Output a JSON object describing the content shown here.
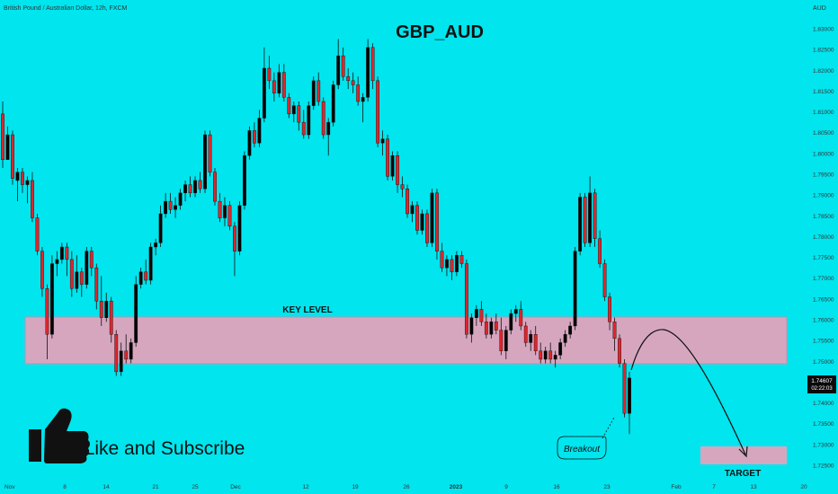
{
  "header": {
    "symbol_line": "British Pound / Australian Dollar, 12h, FXCM",
    "currency": "AUD"
  },
  "title": "GBP_AUD",
  "annotations": {
    "key_level": "KEY LEVEL",
    "breakout": "Breakout",
    "target": "TARGET",
    "cta": "Like and Subscribe"
  },
  "price_tag": {
    "price": "1.74607",
    "countdown": "02:22:03"
  },
  "colors": {
    "background": "#00e5ee",
    "bull": "#000000",
    "bear": "#e0252b",
    "zone": "#d6a6bf"
  },
  "icons": {
    "cta": "thumbs-up-icon"
  },
  "chart_data": {
    "type": "candlestick",
    "title": "GBP_AUD",
    "interval": "12h",
    "y_axis": {
      "side": "right",
      "range": [
        1.7225,
        1.8325
      ],
      "ticks": [
        "1.83000",
        "1.82500",
        "1.82000",
        "1.81500",
        "1.81000",
        "1.80500",
        "1.80000",
        "1.79500",
        "1.79000",
        "1.78500",
        "1.78000",
        "1.77500",
        "1.77000",
        "1.76500",
        "1.76000",
        "1.75500",
        "1.75000",
        "1.74500",
        "1.74000",
        "1.73500",
        "1.73000",
        "1.72500"
      ]
    },
    "x_axis": {
      "ticks": [
        "Nov",
        "8",
        "14",
        "21",
        "25",
        "Dec",
        "12",
        "19",
        "26",
        "2023",
        "9",
        "16",
        "23",
        "Feb",
        "7",
        "13",
        "20"
      ]
    },
    "zones": [
      {
        "label": "KEY LEVEL",
        "from": 1.7492,
        "to": 1.7612
      },
      {
        "label": "TARGET",
        "from": 1.7262,
        "to": 1.7298
      }
    ],
    "last_price": 1.74607,
    "candles": [
      [
        1.8095,
        1.8125,
        1.7965,
        1.7985
      ],
      [
        1.7985,
        1.8065,
        1.7985,
        1.8045
      ],
      [
        1.8045,
        1.8055,
        1.7925,
        1.794
      ],
      [
        1.7935,
        1.7965,
        1.7885,
        1.7955
      ],
      [
        1.7955,
        1.7965,
        1.7905,
        1.7925
      ],
      [
        1.7925,
        1.7945,
        1.788,
        1.7935
      ],
      [
        1.7935,
        1.7955,
        1.7835,
        1.7845
      ],
      [
        1.7845,
        1.7855,
        1.7755,
        1.7765
      ],
      [
        1.7765,
        1.7775,
        1.7655,
        1.7675
      ],
      [
        1.7675,
        1.7685,
        1.7505,
        1.7565
      ],
      [
        1.7565,
        1.7755,
        1.7555,
        1.7735
      ],
      [
        1.7735,
        1.7765,
        1.7705,
        1.7745
      ],
      [
        1.7745,
        1.7785,
        1.7735,
        1.7775
      ],
      [
        1.7775,
        1.7785,
        1.7705,
        1.7745
      ],
      [
        1.7745,
        1.7765,
        1.7655,
        1.7675
      ],
      [
        1.7675,
        1.7755,
        1.7665,
        1.7715
      ],
      [
        1.7715,
        1.7725,
        1.7655,
        1.7685
      ],
      [
        1.7685,
        1.7775,
        1.7675,
        1.7765
      ],
      [
        1.7765,
        1.7775,
        1.7705,
        1.7725
      ],
      [
        1.7725,
        1.7735,
        1.7625,
        1.7645
      ],
      [
        1.7645,
        1.7705,
        1.7585,
        1.7605
      ],
      [
        1.7605,
        1.7665,
        1.7595,
        1.7645
      ],
      [
        1.7645,
        1.7655,
        1.7545,
        1.7565
      ],
      [
        1.7565,
        1.7575,
        1.7465,
        1.7475
      ],
      [
        1.7475,
        1.7545,
        1.7465,
        1.7525
      ],
      [
        1.7525,
        1.7565,
        1.7495,
        1.7505
      ],
      [
        1.7505,
        1.7555,
        1.7495,
        1.7545
      ],
      [
        1.7545,
        1.7705,
        1.7535,
        1.7685
      ],
      [
        1.7685,
        1.7725,
        1.7675,
        1.7715
      ],
      [
        1.7715,
        1.7745,
        1.7685,
        1.7695
      ],
      [
        1.7695,
        1.7785,
        1.7685,
        1.7775
      ],
      [
        1.7775,
        1.7795,
        1.7755,
        1.7785
      ],
      [
        1.7785,
        1.7875,
        1.7775,
        1.7855
      ],
      [
        1.7855,
        1.7905,
        1.7845,
        1.7885
      ],
      [
        1.7885,
        1.7905,
        1.7855,
        1.7865
      ],
      [
        1.7865,
        1.7895,
        1.7845,
        1.7875
      ],
      [
        1.7875,
        1.7915,
        1.7865,
        1.7905
      ],
      [
        1.7905,
        1.7935,
        1.7885,
        1.7925
      ],
      [
        1.7925,
        1.7945,
        1.7895,
        1.7905
      ],
      [
        1.7905,
        1.7945,
        1.7895,
        1.7935
      ],
      [
        1.7935,
        1.7955,
        1.7905,
        1.7915
      ],
      [
        1.7915,
        1.8055,
        1.7905,
        1.8045
      ],
      [
        1.8045,
        1.8055,
        1.7945,
        1.7955
      ],
      [
        1.7955,
        1.7965,
        1.7875,
        1.7885
      ],
      [
        1.7885,
        1.7905,
        1.7835,
        1.7845
      ],
      [
        1.7845,
        1.7895,
        1.7825,
        1.7875
      ],
      [
        1.7875,
        1.7885,
        1.7815,
        1.7825
      ],
      [
        1.7825,
        1.7835,
        1.7705,
        1.7765
      ],
      [
        1.7765,
        1.7885,
        1.7755,
        1.7875
      ],
      [
        1.7875,
        1.8005,
        1.7865,
        1.7995
      ],
      [
        1.7995,
        1.8065,
        1.7985,
        1.8055
      ],
      [
        1.8055,
        1.8075,
        1.8015,
        1.8025
      ],
      [
        1.8025,
        1.8105,
        1.8015,
        1.8085
      ],
      [
        1.8085,
        1.8255,
        1.8075,
        1.8205
      ],
      [
        1.8205,
        1.8235,
        1.8155,
        1.8175
      ],
      [
        1.8175,
        1.8195,
        1.8125,
        1.8145
      ],
      [
        1.8145,
        1.8215,
        1.8135,
        1.8195
      ],
      [
        1.8195,
        1.8215,
        1.8125,
        1.8135
      ],
      [
        1.8135,
        1.8145,
        1.8085,
        1.8095
      ],
      [
        1.8095,
        1.8125,
        1.8075,
        1.8115
      ],
      [
        1.8115,
        1.8125,
        1.8055,
        1.8075
      ],
      [
        1.8075,
        1.8105,
        1.8035,
        1.8045
      ],
      [
        1.8045,
        1.8125,
        1.8035,
        1.8115
      ],
      [
        1.8115,
        1.8185,
        1.8105,
        1.8175
      ],
      [
        1.8175,
        1.8195,
        1.8115,
        1.8125
      ],
      [
        1.8125,
        1.8135,
        1.8035,
        1.8045
      ],
      [
        1.8045,
        1.8085,
        1.7995,
        1.8075
      ],
      [
        1.8075,
        1.8175,
        1.8065,
        1.8165
      ],
      [
        1.8165,
        1.8275,
        1.8155,
        1.8235
      ],
      [
        1.8235,
        1.8255,
        1.8175,
        1.8185
      ],
      [
        1.8185,
        1.8205,
        1.8155,
        1.8175
      ],
      [
        1.8175,
        1.8195,
        1.8145,
        1.8165
      ],
      [
        1.8165,
        1.8185,
        1.8115,
        1.8125
      ],
      [
        1.8125,
        1.8145,
        1.8075,
        1.8135
      ],
      [
        1.8135,
        1.8275,
        1.8125,
        1.8255
      ],
      [
        1.8255,
        1.8265,
        1.8155,
        1.8175
      ],
      [
        1.8175,
        1.8185,
        1.8015,
        1.8025
      ],
      [
        1.8025,
        1.8055,
        1.7995,
        1.8035
      ],
      [
        1.8035,
        1.8045,
        1.7935,
        1.7945
      ],
      [
        1.7945,
        1.8005,
        1.7935,
        1.7995
      ],
      [
        1.7995,
        1.8005,
        1.7905,
        1.7925
      ],
      [
        1.7925,
        1.7945,
        1.7895,
        1.7915
      ],
      [
        1.7915,
        1.7925,
        1.7845,
        1.7855
      ],
      [
        1.7855,
        1.7885,
        1.7835,
        1.7875
      ],
      [
        1.7875,
        1.7885,
        1.7805,
        1.7815
      ],
      [
        1.7815,
        1.7865,
        1.7805,
        1.7855
      ],
      [
        1.7855,
        1.7865,
        1.7775,
        1.7785
      ],
      [
        1.7785,
        1.7915,
        1.7775,
        1.7905
      ],
      [
        1.7905,
        1.7915,
        1.7745,
        1.7765
      ],
      [
        1.7765,
        1.7785,
        1.7715,
        1.7725
      ],
      [
        1.7725,
        1.7755,
        1.7705,
        1.7745
      ],
      [
        1.7745,
        1.7755,
        1.7695,
        1.7715
      ],
      [
        1.7715,
        1.7765,
        1.7705,
        1.7755
      ],
      [
        1.7755,
        1.7765,
        1.7725,
        1.7735
      ],
      [
        1.7735,
        1.7745,
        1.7555,
        1.7565
      ],
      [
        1.7565,
        1.7615,
        1.7545,
        1.7605
      ],
      [
        1.7605,
        1.7635,
        1.7585,
        1.7625
      ],
      [
        1.7625,
        1.7645,
        1.7585,
        1.7595
      ],
      [
        1.7595,
        1.7615,
        1.7555,
        1.7565
      ],
      [
        1.7565,
        1.7605,
        1.7555,
        1.7595
      ],
      [
        1.7595,
        1.7615,
        1.7565,
        1.7575
      ],
      [
        1.7575,
        1.7605,
        1.7515,
        1.7525
      ],
      [
        1.7525,
        1.7585,
        1.7505,
        1.7575
      ],
      [
        1.7575,
        1.7625,
        1.7565,
        1.7615
      ],
      [
        1.7615,
        1.7635,
        1.7595,
        1.7625
      ],
      [
        1.7625,
        1.7645,
        1.7575,
        1.7585
      ],
      [
        1.7585,
        1.7595,
        1.7535,
        1.7545
      ],
      [
        1.7545,
        1.7575,
        1.7525,
        1.7565
      ],
      [
        1.7565,
        1.7585,
        1.7515,
        1.7525
      ],
      [
        1.7525,
        1.7545,
        1.7495,
        1.7505
      ],
      [
        1.7505,
        1.7535,
        1.7495,
        1.7525
      ],
      [
        1.7525,
        1.7545,
        1.7495,
        1.7505
      ],
      [
        1.7505,
        1.7525,
        1.7485,
        1.7515
      ],
      [
        1.7515,
        1.7555,
        1.7505,
        1.7545
      ],
      [
        1.7545,
        1.7575,
        1.7535,
        1.7565
      ],
      [
        1.7565,
        1.7595,
        1.7555,
        1.7585
      ],
      [
        1.7585,
        1.7775,
        1.7575,
        1.7765
      ],
      [
        1.7765,
        1.7905,
        1.7755,
        1.7895
      ],
      [
        1.7895,
        1.7905,
        1.7775,
        1.7785
      ],
      [
        1.7785,
        1.7945,
        1.7775,
        1.7905
      ],
      [
        1.7905,
        1.7915,
        1.7775,
        1.7795
      ],
      [
        1.7795,
        1.7815,
        1.7725,
        1.7735
      ],
      [
        1.7735,
        1.7745,
        1.7645,
        1.7655
      ],
      [
        1.7655,
        1.7665,
        1.7575,
        1.7595
      ],
      [
        1.7595,
        1.7605,
        1.7525,
        1.7555
      ],
      [
        1.7555,
        1.7565,
        1.7485,
        1.7495
      ],
      [
        1.7495,
        1.7505,
        1.7365,
        1.7375
      ],
      [
        1.7375,
        1.7475,
        1.7325,
        1.746
      ]
    ]
  }
}
